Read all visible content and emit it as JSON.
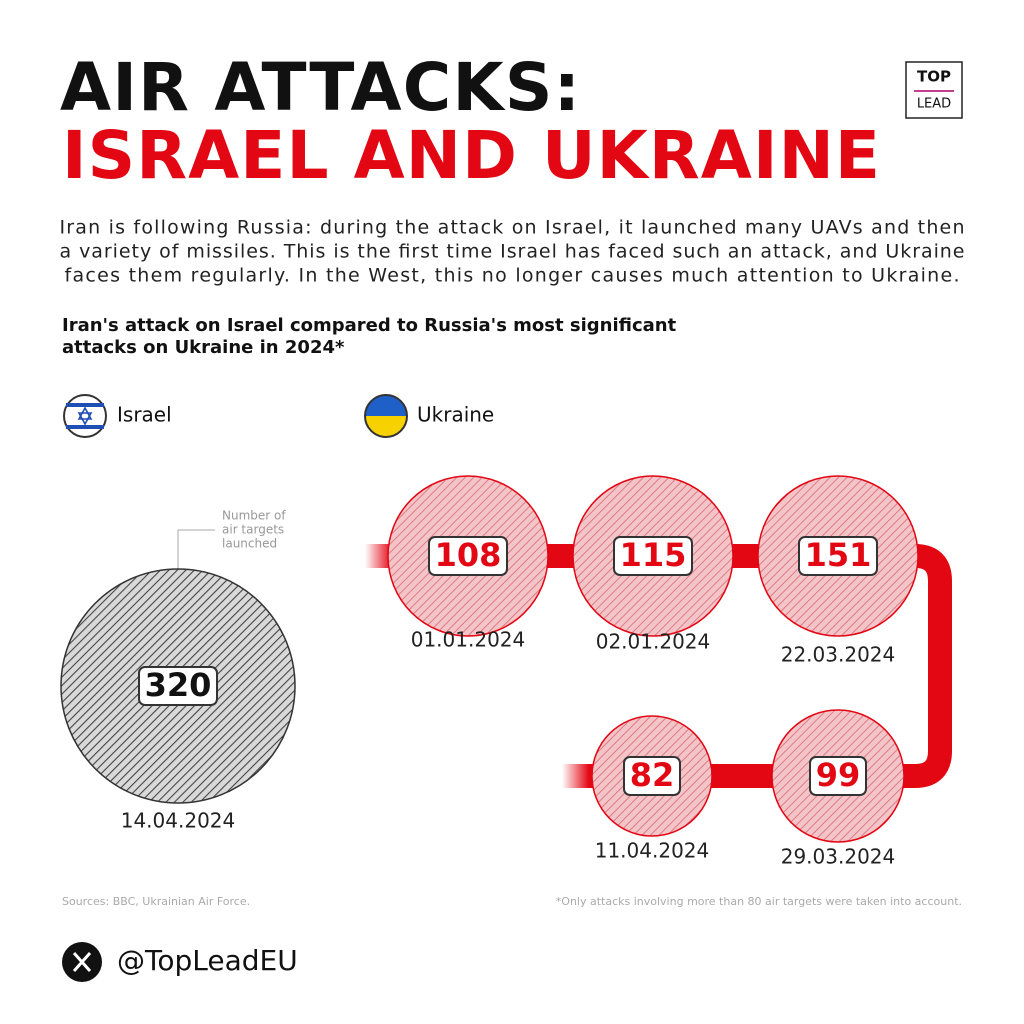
{
  "header": {
    "title_line1": "AIR ATTACKS:",
    "title_line2": "ISRAEL AND UKRAINE",
    "logo_top": "TOP",
    "logo_bottom": "LEAD"
  },
  "description": [
    "Iran is following Russia: during the attack on Israel, it launched many UAVs and then",
    "a variety of missiles. This is the first time Israel has faced such an attack, and Ukraine",
    "faces them regularly. In the West, this no longer causes much attention to Ukraine."
  ],
  "subtitle": [
    "Iran's attack on Israel compared to Russia's most significant",
    "attacks on Ukraine in 2024*"
  ],
  "legend": [
    "Israel",
    "Ukraine"
  ],
  "annotation": [
    "Number of",
    "air targets",
    "launched"
  ],
  "israel": {
    "value": 320,
    "date": "14.04.2024"
  },
  "ukraine": [
    {
      "value": 108,
      "date": "01.01.2024"
    },
    {
      "value": 115,
      "date": "02.01.2024"
    },
    {
      "value": 151,
      "date": "22.03.2024"
    },
    {
      "value": 99,
      "date": "29.03.2024"
    },
    {
      "value": 82,
      "date": "11.04.2024"
    }
  ],
  "sources": "Sources: BBC, Ukrainian Air Force.",
  "footnote": "*Only attacks involving more than 80 air targets were taken into account.",
  "handle": "@TopLeadEU"
}
